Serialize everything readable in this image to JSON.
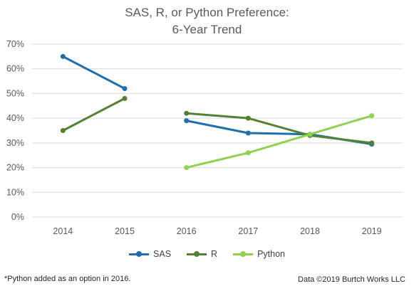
{
  "title": {
    "line1": "SAS, R, or Python Preference:",
    "line2": "6-Year Trend"
  },
  "footnote": "*Python added as an option in 2016.",
  "source": "Data ©2019 Burtch Works LLC",
  "chart_data": {
    "type": "line",
    "title": "SAS, R, or Python Preference: 6-Year Trend",
    "categories": [
      "2014",
      "2015",
      "2016",
      "2017",
      "2018",
      "2019"
    ],
    "y_ticks": [
      "0%",
      "10%",
      "20%",
      "30%",
      "40%",
      "50%",
      "60%",
      "70%"
    ],
    "ylim": [
      0,
      70
    ],
    "y_unit": "%",
    "grid": true,
    "legend_position": "bottom",
    "note": "Gap in SAS and R lines between 2015 and 2016",
    "series": [
      {
        "name": "SAS",
        "color": "#1f6fae",
        "segments": [
          [
            65,
            52
          ],
          [
            39,
            34,
            33.5,
            29.5
          ]
        ],
        "values": [
          65,
          52,
          39,
          34,
          33.5,
          29.5
        ]
      },
      {
        "name": "R",
        "color": "#548235",
        "segments": [
          [
            35,
            48
          ],
          [
            42,
            40,
            33,
            30
          ]
        ],
        "values": [
          35,
          48,
          42,
          40,
          33,
          30
        ]
      },
      {
        "name": "Python",
        "color": "#92d050",
        "segments": [
          [
            null,
            null
          ],
          [
            20,
            26,
            33.5,
            41
          ]
        ],
        "values": [
          null,
          null,
          20,
          26,
          33.5,
          41
        ]
      }
    ]
  }
}
